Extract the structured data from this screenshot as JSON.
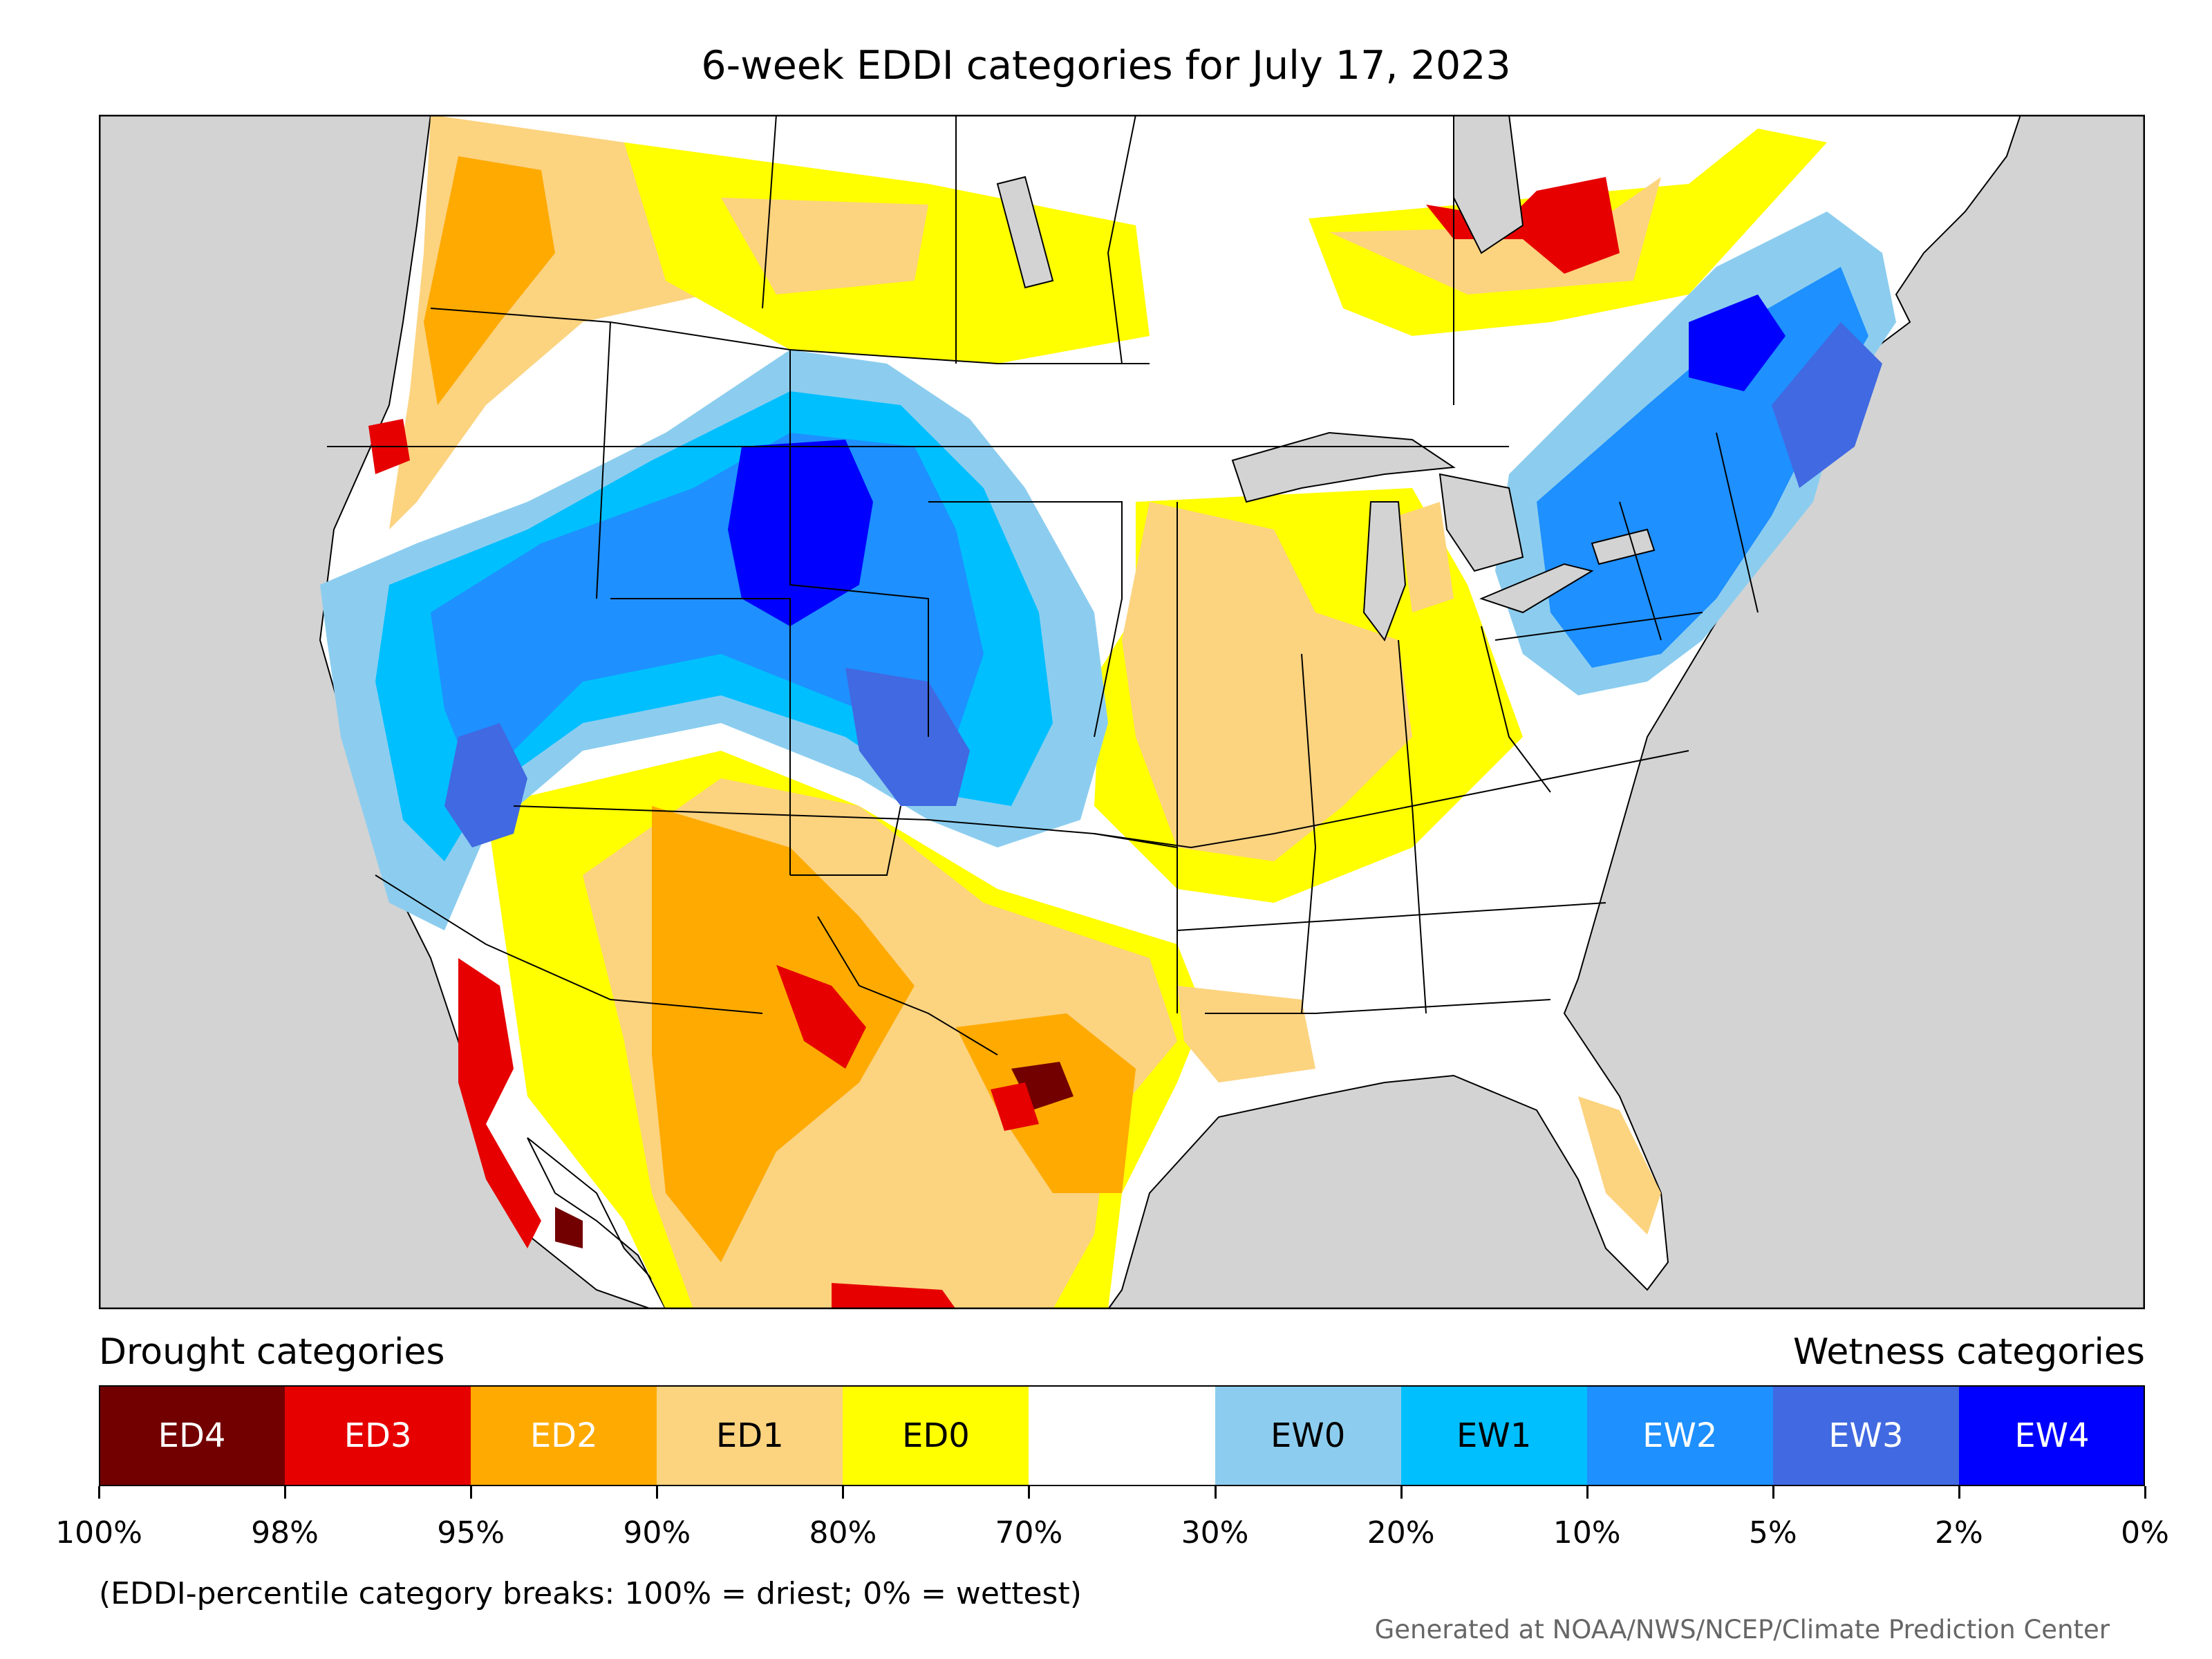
{
  "title": "6-week EDDI categories for July 17, 2023",
  "legend": {
    "drought_header": "Drought categories",
    "wetness_header": "Wetness categories",
    "categories": [
      {
        "label": "ED4",
        "color": "#730000",
        "text_color": "#ffffff"
      },
      {
        "label": "ED3",
        "color": "#e60000",
        "text_color": "#ffffff"
      },
      {
        "label": "ED2",
        "color": "#ffaa00",
        "text_color": "#ffffff"
      },
      {
        "label": "ED1",
        "color": "#fcd37f",
        "text_color": "#000000"
      },
      {
        "label": "ED0",
        "color": "#ffff00",
        "text_color": "#000000"
      },
      {
        "label": "",
        "color": "#ffffff",
        "text_color": "#000000"
      },
      {
        "label": "EW0",
        "color": "#8ccdef",
        "text_color": "#000000"
      },
      {
        "label": "EW1",
        "color": "#00bfff",
        "text_color": "#000000"
      },
      {
        "label": "EW2",
        "color": "#1e90ff",
        "text_color": "#ffffff"
      },
      {
        "label": "EW3",
        "color": "#4169e1",
        "text_color": "#ffffff"
      },
      {
        "label": "EW4",
        "color": "#0000ff",
        "text_color": "#ffffff"
      }
    ],
    "breaks": [
      "100%",
      "98%",
      "95%",
      "90%",
      "80%",
      "70%",
      "30%",
      "20%",
      "10%",
      "5%",
      "2%",
      "0%"
    ]
  },
  "note": "(EDDI-percentile category breaks: 100% = driest; 0% = wettest)",
  "credit": "Generated at NOAA/NWS/NCEP/Climate Prediction Center",
  "map": {
    "ocean_color": "#d3d3d3",
    "land_color": "#ffffff",
    "border_color": "#000000"
  }
}
